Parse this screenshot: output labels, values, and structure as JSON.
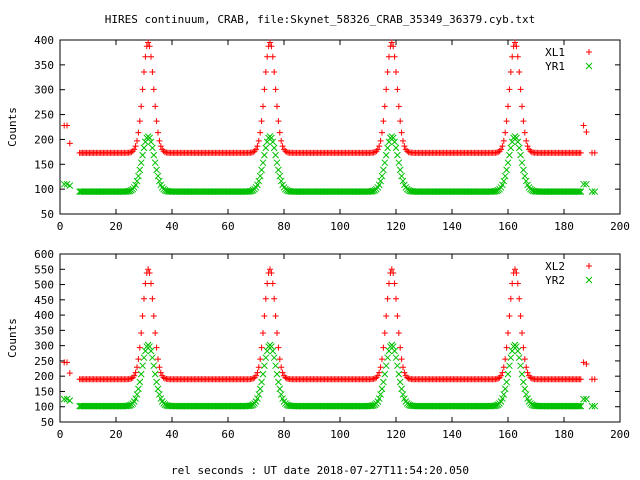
{
  "title": "HIRES continuum, CRAB, file:Skynet_58326_CRAB_35349_36379.cyb.txt",
  "xlabel": "rel seconds : UT date 2018-07-27T11:54:20.050",
  "colors": {
    "red": "#ff0000",
    "green": "#00c000",
    "frame": "#000000"
  },
  "chart_data": [
    {
      "type": "scatter",
      "title": "HIRES continuum, CRAB, file:Skynet_58326_CRAB_35349_36379.cyb.txt",
      "xlabel": "",
      "ylabel": "Counts",
      "xlim": [
        0,
        200
      ],
      "ylim": [
        50,
        400
      ],
      "xticks": [
        "0",
        "20",
        "40",
        "60",
        "80",
        "100",
        "120",
        "140",
        "160",
        "180",
        "200"
      ],
      "yticks": [
        "50",
        "100",
        "150",
        "200",
        "250",
        "300",
        "350",
        "400"
      ],
      "legend_placement": "top-right",
      "series": [
        {
          "name": "XL1",
          "marker": "+",
          "color": "#ff0000",
          "baseline": 173,
          "peak_height": 222,
          "peak_sigma": 1.9,
          "peaks": [
            31.5,
            75.0,
            118.5,
            162.5
          ],
          "scan_x_range": [
            7,
            186
          ],
          "scan_step": 0.5,
          "calibration_points": [
            [
              1.5,
              228
            ],
            [
              2.5,
              228
            ],
            [
              3.5,
              192
            ],
            [
              187,
              228
            ],
            [
              188,
              215
            ],
            [
              190,
              173
            ],
            [
              191,
              173
            ]
          ]
        },
        {
          "name": "YR1",
          "marker": "x",
          "color": "#00c000",
          "baseline": 95,
          "peak_height": 111,
          "peak_sigma": 2.2,
          "peaks": [
            31.5,
            75.0,
            118.5,
            162.5
          ],
          "scan_x_range": [
            7,
            186
          ],
          "scan_step": 0.5,
          "calibration_points": [
            [
              1.5,
              110
            ],
            [
              2.5,
              110
            ],
            [
              3.5,
              107
            ],
            [
              187,
              110
            ],
            [
              188,
              110
            ],
            [
              190,
              95
            ],
            [
              191,
              95
            ]
          ]
        }
      ]
    },
    {
      "type": "scatter",
      "title": "",
      "xlabel": "rel seconds : UT date 2018-07-27T11:54:20.050",
      "ylabel": "Counts",
      "xlim": [
        0,
        200
      ],
      "ylim": [
        50,
        600
      ],
      "xticks": [
        "0",
        "20",
        "40",
        "60",
        "80",
        "100",
        "120",
        "140",
        "160",
        "180",
        "200"
      ],
      "yticks": [
        "50",
        "100",
        "150",
        "200",
        "250",
        "300",
        "350",
        "400",
        "450",
        "500",
        "550",
        "600"
      ],
      "legend_placement": "top-right",
      "series": [
        {
          "name": "XL2",
          "marker": "+",
          "color": "#ff0000",
          "baseline": 190,
          "peak_height": 360,
          "peak_sigma": 1.9,
          "peaks": [
            31.5,
            75.0,
            118.5,
            162.5
          ],
          "scan_x_range": [
            7,
            186
          ],
          "scan_step": 0.5,
          "calibration_points": [
            [
              1.5,
              245
            ],
            [
              2.5,
              245
            ],
            [
              3.5,
              210
            ],
            [
              187,
              245
            ],
            [
              188,
              240
            ],
            [
              190,
              190
            ],
            [
              191,
              190
            ]
          ]
        },
        {
          "name": "YR2",
          "marker": "x",
          "color": "#00c000",
          "baseline": 102,
          "peak_height": 200,
          "peak_sigma": 2.2,
          "peaks": [
            31.5,
            75.0,
            118.5,
            162.5
          ],
          "scan_x_range": [
            7,
            186
          ],
          "scan_step": 0.5,
          "calibration_points": [
            [
              1.5,
              125
            ],
            [
              2.5,
              125
            ],
            [
              3.5,
              120
            ],
            [
              187,
              125
            ],
            [
              188,
              125
            ],
            [
              190,
              102
            ],
            [
              191,
              102
            ]
          ]
        }
      ]
    }
  ]
}
